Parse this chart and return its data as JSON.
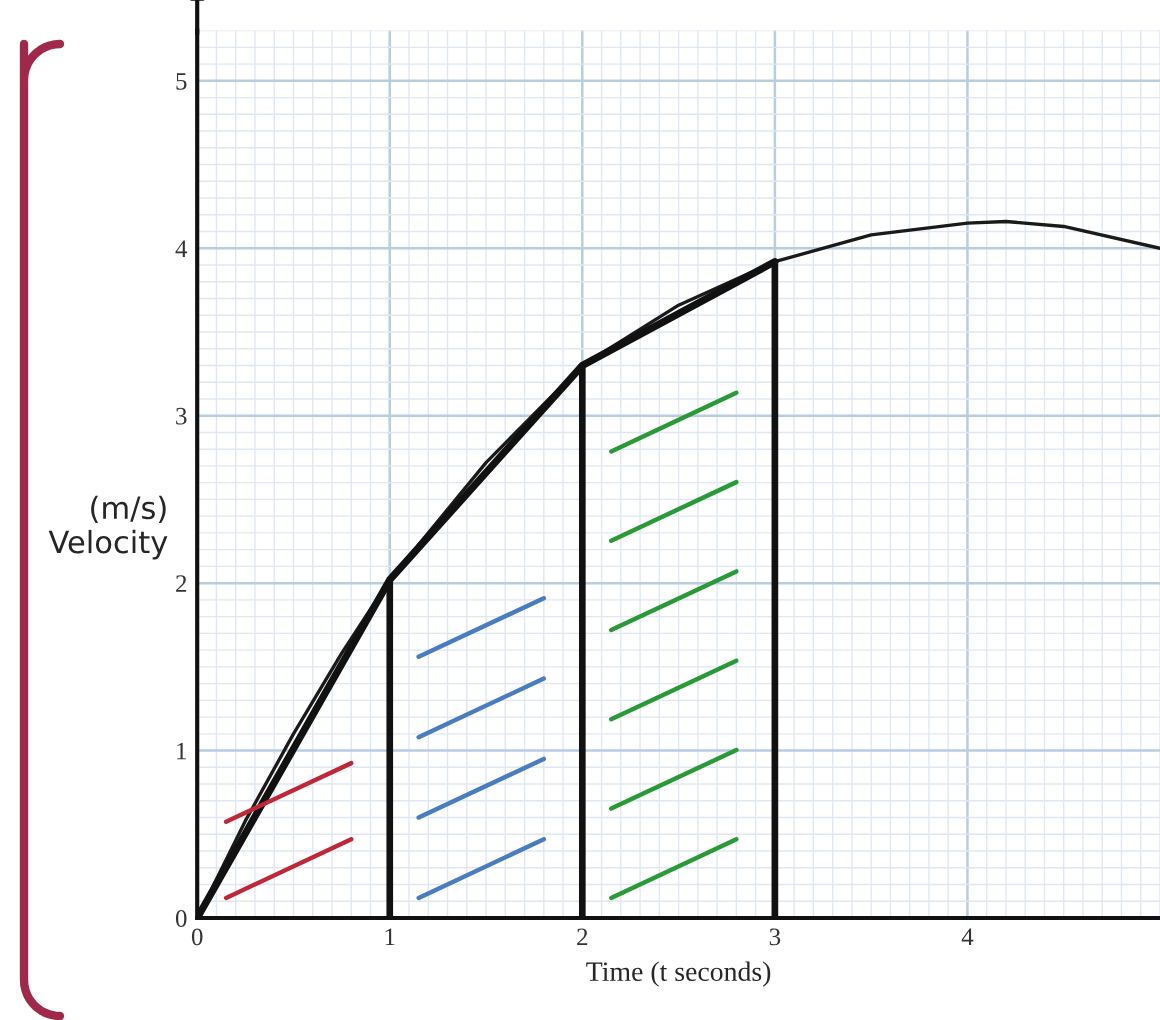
{
  "chart_data": {
    "type": "line",
    "xlabel": "Time (t seconds)",
    "ylabel": "(m/s)\nVelocity",
    "series": [
      {
        "color": "#1a1a1a",
        "x": [
          0,
          0.25,
          0.5,
          0.75,
          1,
          1.5,
          2,
          2.5,
          3,
          3.5,
          4,
          4.2,
          4.5,
          5
        ],
        "values": [
          0,
          0.58,
          1.1,
          1.58,
          2.02,
          2.72,
          3.3,
          3.66,
          3.92,
          4.08,
          4.15,
          4.16,
          4.13,
          4.0
        ]
      },
      {
        "color": "#111111",
        "x": [
          0,
          1,
          2,
          3
        ],
        "values": [
          0,
          2.02,
          3.3,
          3.92
        ]
      },
      {
        "color": "#111111",
        "x": [
          1,
          1
        ],
        "values": [
          2.02,
          0
        ]
      },
      {
        "color": "#111111",
        "x": [
          2,
          2
        ],
        "values": [
          3.3,
          0
        ]
      },
      {
        "color": "#111111",
        "x": [
          3,
          3
        ],
        "values": [
          3.92,
          0
        ]
      }
    ],
    "xlim": [
      0,
      5
    ],
    "xticks": [
      0,
      1,
      2,
      3,
      4
    ],
    "ylim": [
      0,
      5.3
    ],
    "yticks": [
      0,
      1,
      2,
      3,
      4,
      5
    ],
    "grid": true,
    "legend": false
  }
}
